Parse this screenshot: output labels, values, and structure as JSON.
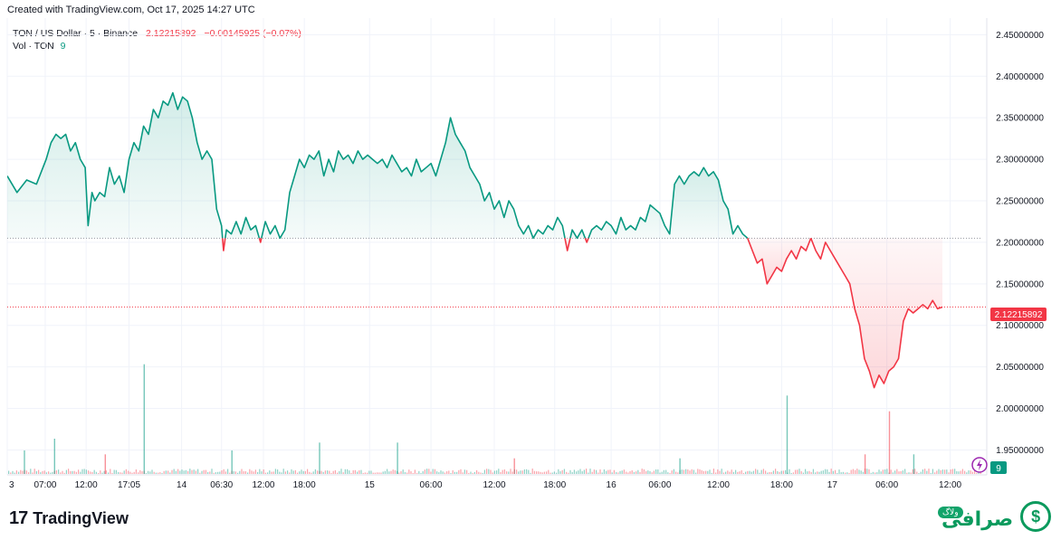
{
  "header": {
    "caption": "Created with TradingView.com, Oct 17, 2025 14:27 UTC"
  },
  "legend": {
    "symbol": "TON / US Dollar · 5 · Binance",
    "last": "2.12215892",
    "change": "−0.00145925 (−0.07%)",
    "vol_label": "Vol · TON",
    "vol_value": "9"
  },
  "price_badge": "2.12215892",
  "volume_badge": "9",
  "footer": {
    "tradingview_mark": "17",
    "tradingview_name": "TradingView",
    "brand_tag": "ولاگ",
    "brand_word": "صرافی"
  },
  "colors": {
    "up": "#089981",
    "down": "#f23645",
    "grid": "#f0f3fa",
    "baseline": "#9598a1"
  },
  "chart_data": {
    "type": "line",
    "title": "TON / US Dollar · 5 · Binance",
    "style": "baseline",
    "ylim": [
      1.92,
      2.47
    ],
    "baseline_value": 2.205,
    "last_value": 2.12215892,
    "y_ticks": [
      "2.45000000",
      "2.40000000",
      "2.35000000",
      "2.30000000",
      "2.25000000",
      "2.20000000",
      "2.15000000",
      "2.10000000",
      "2.05000000",
      "2.00000000",
      "1.95000000"
    ],
    "y_tick_values": [
      2.45,
      2.4,
      2.35,
      2.3,
      2.25,
      2.2,
      2.15,
      2.1,
      2.05,
      2.0,
      1.95
    ],
    "x_ticks": [
      {
        "label": "3",
        "t": 0
      },
      {
        "label": "07:00",
        "t": 0.039
      },
      {
        "label": "12:00",
        "t": 0.081
      },
      {
        "label": "17:05",
        "t": 0.125
      },
      {
        "label": "14",
        "t": 0.179
      },
      {
        "label": "06:30",
        "t": 0.22
      },
      {
        "label": "12:00",
        "t": 0.263
      },
      {
        "label": "18:00",
        "t": 0.305
      },
      {
        "label": "15",
        "t": 0.372
      },
      {
        "label": "06:00",
        "t": 0.435
      },
      {
        "label": "12:00",
        "t": 0.5
      },
      {
        "label": "18:00",
        "t": 0.562
      },
      {
        "label": "16",
        "t": 0.62
      },
      {
        "label": "06:00",
        "t": 0.67
      },
      {
        "label": "12:00",
        "t": 0.73
      },
      {
        "label": "18:00",
        "t": 0.795
      },
      {
        "label": "17",
        "t": 0.847
      },
      {
        "label": "06:00",
        "t": 0.903
      },
      {
        "label": "12:00",
        "t": 0.968
      }
    ],
    "series": [
      {
        "name": "TON/USD",
        "points": [
          [
            0,
            2.28
          ],
          [
            0.01,
            2.26
          ],
          [
            0.02,
            2.275
          ],
          [
            0.03,
            2.27
          ],
          [
            0.04,
            2.3
          ],
          [
            0.045,
            2.32
          ],
          [
            0.05,
            2.33
          ],
          [
            0.055,
            2.325
          ],
          [
            0.06,
            2.33
          ],
          [
            0.065,
            2.31
          ],
          [
            0.07,
            2.32
          ],
          [
            0.075,
            2.3
          ],
          [
            0.08,
            2.29
          ],
          [
            0.083,
            2.22
          ],
          [
            0.087,
            2.26
          ],
          [
            0.09,
            2.25
          ],
          [
            0.095,
            2.26
          ],
          [
            0.1,
            2.255
          ],
          [
            0.105,
            2.29
          ],
          [
            0.11,
            2.27
          ],
          [
            0.115,
            2.28
          ],
          [
            0.12,
            2.26
          ],
          [
            0.125,
            2.3
          ],
          [
            0.13,
            2.32
          ],
          [
            0.135,
            2.31
          ],
          [
            0.14,
            2.34
          ],
          [
            0.145,
            2.33
          ],
          [
            0.15,
            2.36
          ],
          [
            0.155,
            2.35
          ],
          [
            0.16,
            2.37
          ],
          [
            0.165,
            2.365
          ],
          [
            0.17,
            2.38
          ],
          [
            0.175,
            2.36
          ],
          [
            0.18,
            2.375
          ],
          [
            0.185,
            2.37
          ],
          [
            0.19,
            2.35
          ],
          [
            0.195,
            2.32
          ],
          [
            0.2,
            2.3
          ],
          [
            0.205,
            2.31
          ],
          [
            0.21,
            2.3
          ],
          [
            0.215,
            2.24
          ],
          [
            0.22,
            2.22
          ],
          [
            0.222,
            2.19
          ],
          [
            0.225,
            2.215
          ],
          [
            0.23,
            2.21
          ],
          [
            0.235,
            2.225
          ],
          [
            0.24,
            2.21
          ],
          [
            0.245,
            2.23
          ],
          [
            0.25,
            2.215
          ],
          [
            0.255,
            2.22
          ],
          [
            0.26,
            2.2
          ],
          [
            0.265,
            2.225
          ],
          [
            0.27,
            2.21
          ],
          [
            0.275,
            2.22
          ],
          [
            0.28,
            2.205
          ],
          [
            0.285,
            2.215
          ],
          [
            0.29,
            2.26
          ],
          [
            0.295,
            2.28
          ],
          [
            0.3,
            2.3
          ],
          [
            0.305,
            2.29
          ],
          [
            0.31,
            2.305
          ],
          [
            0.315,
            2.3
          ],
          [
            0.32,
            2.31
          ],
          [
            0.325,
            2.28
          ],
          [
            0.33,
            2.3
          ],
          [
            0.335,
            2.285
          ],
          [
            0.34,
            2.31
          ],
          [
            0.345,
            2.3
          ],
          [
            0.35,
            2.305
          ],
          [
            0.355,
            2.295
          ],
          [
            0.36,
            2.31
          ],
          [
            0.365,
            2.3
          ],
          [
            0.37,
            2.305
          ],
          [
            0.375,
            2.3
          ],
          [
            0.38,
            2.295
          ],
          [
            0.385,
            2.3
          ],
          [
            0.39,
            2.29
          ],
          [
            0.395,
            2.305
          ],
          [
            0.4,
            2.295
          ],
          [
            0.405,
            2.285
          ],
          [
            0.41,
            2.29
          ],
          [
            0.415,
            2.28
          ],
          [
            0.42,
            2.3
          ],
          [
            0.425,
            2.285
          ],
          [
            0.43,
            2.29
          ],
          [
            0.435,
            2.295
          ],
          [
            0.44,
            2.28
          ],
          [
            0.445,
            2.3
          ],
          [
            0.45,
            2.32
          ],
          [
            0.455,
            2.35
          ],
          [
            0.46,
            2.33
          ],
          [
            0.465,
            2.32
          ],
          [
            0.47,
            2.31
          ],
          [
            0.475,
            2.29
          ],
          [
            0.48,
            2.28
          ],
          [
            0.485,
            2.27
          ],
          [
            0.49,
            2.25
          ],
          [
            0.495,
            2.26
          ],
          [
            0.5,
            2.24
          ],
          [
            0.505,
            2.25
          ],
          [
            0.51,
            2.23
          ],
          [
            0.515,
            2.25
          ],
          [
            0.52,
            2.24
          ],
          [
            0.525,
            2.22
          ],
          [
            0.53,
            2.21
          ],
          [
            0.535,
            2.22
          ],
          [
            0.54,
            2.205
          ],
          [
            0.545,
            2.215
          ],
          [
            0.55,
            2.21
          ],
          [
            0.555,
            2.22
          ],
          [
            0.56,
            2.215
          ],
          [
            0.565,
            2.23
          ],
          [
            0.57,
            2.22
          ],
          [
            0.575,
            2.19
          ],
          [
            0.58,
            2.215
          ],
          [
            0.585,
            2.205
          ],
          [
            0.59,
            2.215
          ],
          [
            0.595,
            2.2
          ],
          [
            0.6,
            2.215
          ],
          [
            0.605,
            2.22
          ],
          [
            0.61,
            2.215
          ],
          [
            0.615,
            2.225
          ],
          [
            0.62,
            2.22
          ],
          [
            0.625,
            2.21
          ],
          [
            0.63,
            2.23
          ],
          [
            0.635,
            2.215
          ],
          [
            0.64,
            2.22
          ],
          [
            0.645,
            2.215
          ],
          [
            0.65,
            2.23
          ],
          [
            0.655,
            2.225
          ],
          [
            0.66,
            2.245
          ],
          [
            0.665,
            2.24
          ],
          [
            0.67,
            2.235
          ],
          [
            0.675,
            2.22
          ],
          [
            0.68,
            2.21
          ],
          [
            0.685,
            2.27
          ],
          [
            0.69,
            2.28
          ],
          [
            0.695,
            2.27
          ],
          [
            0.7,
            2.28
          ],
          [
            0.705,
            2.285
          ],
          [
            0.71,
            2.28
          ],
          [
            0.715,
            2.29
          ],
          [
            0.72,
            2.28
          ],
          [
            0.725,
            2.285
          ],
          [
            0.73,
            2.275
          ],
          [
            0.735,
            2.25
          ],
          [
            0.74,
            2.24
          ],
          [
            0.745,
            2.21
          ],
          [
            0.75,
            2.22
          ],
          [
            0.755,
            2.21
          ],
          [
            0.76,
            2.205
          ],
          [
            0.765,
            2.19
          ],
          [
            0.77,
            2.175
          ],
          [
            0.775,
            2.18
          ],
          [
            0.78,
            2.15
          ],
          [
            0.785,
            2.16
          ],
          [
            0.79,
            2.17
          ],
          [
            0.795,
            2.165
          ],
          [
            0.8,
            2.18
          ],
          [
            0.805,
            2.19
          ],
          [
            0.81,
            2.18
          ],
          [
            0.815,
            2.195
          ],
          [
            0.82,
            2.19
          ],
          [
            0.825,
            2.205
          ],
          [
            0.83,
            2.19
          ],
          [
            0.835,
            2.18
          ],
          [
            0.84,
            2.2
          ],
          [
            0.845,
            2.19
          ],
          [
            0.85,
            2.18
          ],
          [
            0.855,
            2.17
          ],
          [
            0.86,
            2.16
          ],
          [
            0.865,
            2.15
          ],
          [
            0.87,
            2.12
          ],
          [
            0.875,
            2.1
          ],
          [
            0.88,
            2.06
          ],
          [
            0.885,
            2.045
          ],
          [
            0.89,
            2.025
          ],
          [
            0.895,
            2.04
          ],
          [
            0.9,
            2.03
          ],
          [
            0.905,
            2.045
          ],
          [
            0.91,
            2.05
          ],
          [
            0.915,
            2.06
          ],
          [
            0.92,
            2.105
          ],
          [
            0.925,
            2.12
          ],
          [
            0.93,
            2.115
          ],
          [
            0.935,
            2.12
          ],
          [
            0.94,
            2.125
          ],
          [
            0.945,
            2.12
          ],
          [
            0.95,
            2.13
          ],
          [
            0.955,
            2.12
          ],
          [
            0.96,
            2.122
          ]
        ]
      }
    ],
    "volume": {
      "max": 30,
      "spikes": [
        {
          "t": 0.017,
          "v": 6,
          "dir": "up"
        },
        {
          "t": 0.048,
          "v": 9,
          "dir": "up"
        },
        {
          "t": 0.1,
          "v": 5,
          "dir": "down"
        },
        {
          "t": 0.14,
          "v": 28,
          "dir": "up"
        },
        {
          "t": 0.23,
          "v": 6,
          "dir": "up"
        },
        {
          "t": 0.32,
          "v": 8,
          "dir": "up"
        },
        {
          "t": 0.4,
          "v": 8,
          "dir": "up"
        },
        {
          "t": 0.52,
          "v": 4,
          "dir": "down"
        },
        {
          "t": 0.69,
          "v": 4,
          "dir": "up"
        },
        {
          "t": 0.8,
          "v": 20,
          "dir": "up"
        },
        {
          "t": 0.88,
          "v": 5,
          "dir": "down"
        },
        {
          "t": 0.905,
          "v": 16,
          "dir": "down"
        },
        {
          "t": 0.93,
          "v": 5,
          "dir": "up"
        }
      ]
    }
  }
}
